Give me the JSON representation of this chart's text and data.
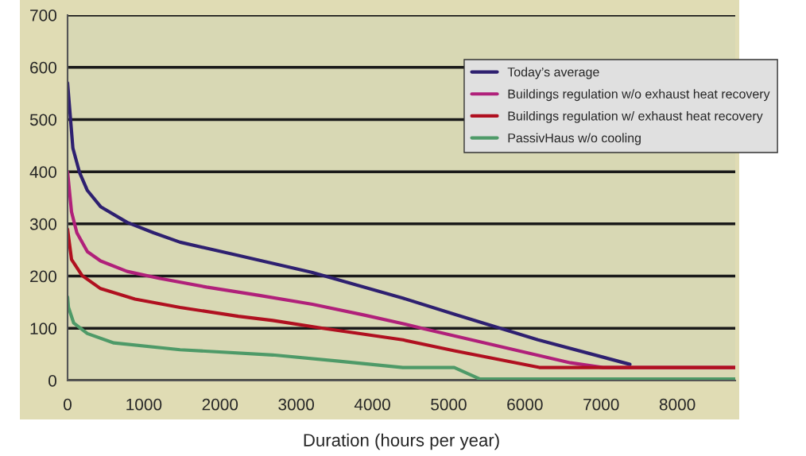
{
  "chart_data": {
    "type": "line",
    "xlabel": "Duration (hours per year)",
    "xlim": [
      0,
      8760
    ],
    "xticks": [
      0,
      1000,
      2000,
      3000,
      4000,
      5000,
      6000,
      7000,
      8000
    ],
    "ylim": [
      0,
      700
    ],
    "yticks": [
      0,
      100,
      200,
      300,
      400,
      500,
      600,
      700
    ],
    "grid": "y",
    "legend": "top right",
    "line_style": "solid",
    "marker": "none",
    "series": [
      {
        "name": "Today’s average",
        "color": "#2e2070",
        "x": [
          0,
          70,
          156,
          260,
          434,
          781,
          1128,
          1476,
          2170,
          3212,
          4398,
          5073,
          6172,
          7378
        ],
        "values": [
          570,
          445,
          399,
          364,
          333,
          303,
          283,
          265,
          242,
          207,
          158,
          127,
          78,
          31
        ]
      },
      {
        "name": "Buildings regulation w/o exhaust heat recovery",
        "color": "#b0207a",
        "x": [
          0,
          52,
          122,
          260,
          434,
          781,
          1198,
          1823,
          2517,
          3212,
          3906,
          4427,
          4682,
          6598,
          7024,
          8760
        ],
        "values": [
          400,
          323,
          283,
          247,
          229,
          209,
          196,
          179,
          163,
          146,
          125,
          108,
          99,
          34,
          25,
          25
        ]
      },
      {
        "name": "Buildings regulation w/ exhaust heat recovery",
        "color": "#b01020",
        "x": [
          0,
          52,
          191,
          434,
          885,
          1476,
          2240,
          2691,
          3351,
          4398,
          5073,
          6190,
          8760
        ],
        "values": [
          290,
          232,
          201,
          176,
          156,
          140,
          123,
          115,
          100,
          78,
          57,
          25,
          25
        ]
      },
      {
        "name": "PassivHaus w/o cooling",
        "color": "#4e9a68",
        "x": [
          0,
          12,
          81,
          260,
          608,
          1476,
          2691,
          3559,
          4398,
          5073,
          5410,
          8760
        ],
        "values": [
          160,
          140,
          110,
          90,
          72,
          59,
          49,
          37,
          25,
          25,
          3,
          3
        ]
      }
    ]
  }
}
